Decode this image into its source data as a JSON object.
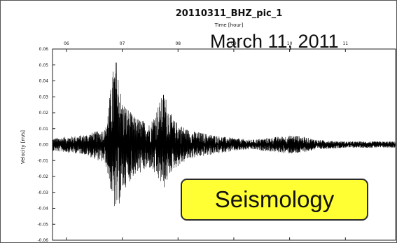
{
  "chart_data": {
    "type": "line",
    "title": "20110311_BHZ_pic_1",
    "xlabel": "Time [hour]",
    "ylabel": "Velocity [m/s]",
    "xlim": [
      5.75,
      11.9
    ],
    "ylim": [
      -0.06,
      0.06
    ],
    "x_ticks": [
      6,
      7,
      8,
      9,
      10,
      11
    ],
    "x_tick_labels": [
      "06",
      "07",
      "08",
      "09",
      "10",
      "11"
    ],
    "y_ticks": [
      0.06,
      0.05,
      0.04,
      0.03,
      0.02,
      0.01,
      0.0,
      -0.01,
      -0.02,
      -0.03,
      -0.04,
      -0.05,
      -0.06
    ],
    "y_tick_labels": [
      "0.06",
      "0.05",
      "0.04",
      "0.03",
      "0.02",
      "0.01",
      "0.00",
      "-0.01",
      "-0.02",
      "-0.03",
      "-0.04",
      "-0.05",
      "-0.06"
    ],
    "x_axis_position": "top",
    "grid": false,
    "legend": "none",
    "series": [
      {
        "envelope_x": [
          5.75,
          6.3,
          6.7,
          6.85,
          6.9,
          7.0,
          7.2,
          7.5,
          7.75,
          7.9,
          8.2,
          8.8,
          9.3,
          9.8,
          10.1,
          10.5,
          11.0,
          11.9
        ],
        "envelope_max": [
          0.004,
          0.006,
          0.01,
          0.052,
          0.054,
          0.028,
          0.018,
          0.013,
          0.034,
          0.016,
          0.009,
          0.005,
          0.003,
          0.005,
          0.006,
          0.003,
          0.002,
          0.002
        ],
        "envelope_min": [
          -0.004,
          -0.006,
          -0.012,
          -0.04,
          -0.045,
          -0.03,
          -0.02,
          -0.015,
          -0.028,
          -0.016,
          -0.009,
          -0.005,
          -0.003,
          -0.005,
          -0.006,
          -0.003,
          -0.002,
          -0.002
        ],
        "color": "#000000"
      }
    ]
  },
  "annotations": {
    "date": "March 11, 2011",
    "label": "Seismology",
    "label_bg": "#ffff33"
  }
}
